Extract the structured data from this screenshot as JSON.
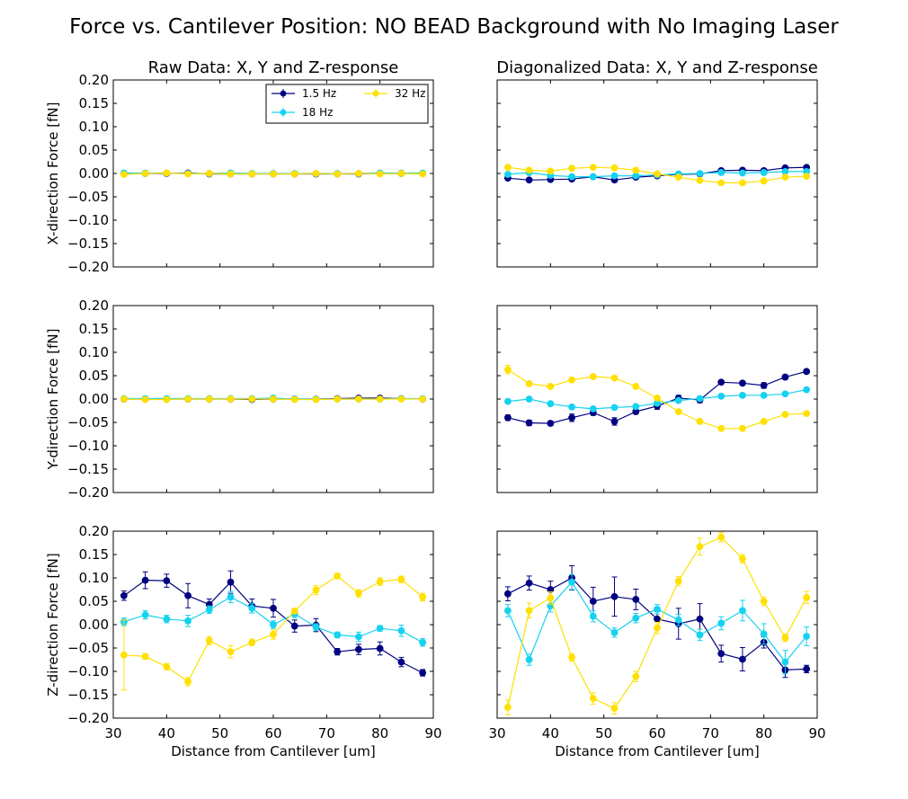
{
  "figure": {
    "suptitle": "Force vs. Cantilever Position: NO BEAD Background with No Imaging Laser"
  },
  "colors": {
    "hz1_5": "#000080",
    "hz18": "#14d2f0",
    "hz32": "#ffe000"
  },
  "chart_data": [
    {
      "type": "line",
      "panel": "raw-x",
      "title": "Raw Data: X, Y and Z-response",
      "xlabel": "",
      "ylabel": "X-direction Force [fN]",
      "xlim": [
        30,
        90
      ],
      "ylim": [
        -0.2,
        0.2
      ],
      "x": [
        32,
        36,
        40,
        44,
        48,
        52,
        56,
        60,
        64,
        68,
        72,
        76,
        80,
        84,
        88
      ],
      "legend": {
        "placement": "top-right",
        "entries": [
          "1.5 Hz",
          "18 Hz",
          "32 Hz"
        ]
      },
      "series": [
        {
          "name": "1.5 Hz",
          "values": [
            0.0,
            0.0,
            0.0,
            0.001,
            -0.001,
            -0.001,
            -0.001,
            -0.001,
            -0.001,
            -0.001,
            -0.001,
            -0.001,
            0.0,
            0.0,
            0.0
          ],
          "errors": [
            0.002,
            0.002,
            0.002,
            0.002,
            0.002,
            0.002,
            0.002,
            0.002,
            0.002,
            0.002,
            0.002,
            0.002,
            0.002,
            0.002,
            0.002
          ]
        },
        {
          "name": "18 Hz",
          "values": [
            0.001,
            0.001,
            0.001,
            0.0,
            0.0,
            0.001,
            0.0,
            0.0,
            0.0,
            0.0,
            0.0,
            0.0,
            0.001,
            0.001,
            0.001
          ],
          "errors": [
            0.002,
            0.002,
            0.002,
            0.002,
            0.002,
            0.002,
            0.002,
            0.002,
            0.002,
            0.002,
            0.002,
            0.002,
            0.002,
            0.002,
            0.002
          ]
        },
        {
          "name": "32 Hz",
          "values": [
            -0.002,
            0.0,
            0.001,
            -0.001,
            0.0,
            -0.001,
            -0.001,
            -0.001,
            -0.001,
            0.0,
            -0.001,
            0.0,
            -0.001,
            0.0,
            -0.001
          ],
          "errors": [
            0.002,
            0.002,
            0.002,
            0.002,
            0.002,
            0.002,
            0.002,
            0.002,
            0.002,
            0.002,
            0.002,
            0.002,
            0.002,
            0.002,
            0.002
          ]
        }
      ]
    },
    {
      "type": "line",
      "panel": "diag-x",
      "title": "Diagonalized Data: X, Y and Z-response",
      "xlabel": "",
      "ylabel": "",
      "xlim": [
        30,
        90
      ],
      "ylim": [
        -0.2,
        0.2
      ],
      "x": [
        32,
        36,
        40,
        44,
        48,
        52,
        56,
        60,
        64,
        68,
        72,
        76,
        80,
        84,
        88
      ],
      "series": [
        {
          "name": "1.5 Hz",
          "values": [
            -0.01,
            -0.014,
            -0.013,
            -0.012,
            -0.007,
            -0.014,
            -0.008,
            -0.005,
            -0.002,
            -0.001,
            0.006,
            0.007,
            0.006,
            0.012,
            0.013
          ],
          "errors": [
            0.003,
            0.003,
            0.003,
            0.004,
            0.003,
            0.004,
            0.003,
            0.003,
            0.003,
            0.003,
            0.003,
            0.003,
            0.004,
            0.003,
            0.003
          ]
        },
        {
          "name": "18 Hz",
          "values": [
            -0.002,
            0.002,
            -0.004,
            -0.007,
            -0.007,
            -0.005,
            -0.005,
            -0.003,
            -0.001,
            0.0,
            0.002,
            0.001,
            0.002,
            0.004,
            0.004
          ],
          "errors": [
            0.002,
            0.002,
            0.002,
            0.002,
            0.002,
            0.002,
            0.002,
            0.002,
            0.002,
            0.002,
            0.002,
            0.002,
            0.002,
            0.002,
            0.002
          ]
        },
        {
          "name": "32 Hz",
          "values": [
            0.013,
            0.007,
            0.005,
            0.011,
            0.013,
            0.012,
            0.007,
            -0.001,
            -0.008,
            -0.015,
            -0.02,
            -0.02,
            -0.016,
            -0.008,
            -0.006
          ],
          "errors": [
            0.002,
            0.002,
            0.002,
            0.002,
            0.002,
            0.002,
            0.002,
            0.002,
            0.002,
            0.002,
            0.002,
            0.002,
            0.002,
            0.002,
            0.002
          ]
        }
      ]
    },
    {
      "type": "line",
      "panel": "raw-y",
      "title": "",
      "xlabel": "",
      "ylabel": "Y-direction Force [fN]",
      "xlim": [
        30,
        90
      ],
      "ylim": [
        -0.2,
        0.2
      ],
      "x": [
        32,
        36,
        40,
        44,
        48,
        52,
        56,
        60,
        64,
        68,
        72,
        76,
        80,
        84,
        88
      ],
      "series": [
        {
          "name": "1.5 Hz",
          "values": [
            0.0,
            0.0,
            0.0,
            0.0,
            0.0,
            0.0,
            -0.001,
            0.0,
            0.0,
            0.0,
            0.001,
            0.002,
            0.002,
            0.001,
            0.0
          ],
          "errors": [
            0.002,
            0.002,
            0.002,
            0.002,
            0.002,
            0.002,
            0.002,
            0.002,
            0.002,
            0.002,
            0.002,
            0.002,
            0.002,
            0.002,
            0.002
          ]
        },
        {
          "name": "18 Hz",
          "values": [
            0.001,
            0.001,
            0.001,
            0.001,
            0.001,
            0.001,
            0.001,
            0.002,
            0.0,
            0.0,
            0.0,
            0.0,
            0.0,
            0.001,
            0.001
          ],
          "errors": [
            0.002,
            0.002,
            0.002,
            0.002,
            0.002,
            0.002,
            0.002,
            0.002,
            0.002,
            0.002,
            0.002,
            0.002,
            0.002,
            0.002,
            0.002
          ]
        },
        {
          "name": "32 Hz",
          "values": [
            0.0,
            -0.001,
            -0.001,
            0.0,
            0.0,
            0.0,
            0.0,
            0.0,
            -0.001,
            -0.001,
            0.0,
            0.0,
            0.0,
            0.0,
            0.0
          ],
          "errors": [
            0.002,
            0.002,
            0.002,
            0.002,
            0.002,
            0.002,
            0.002,
            0.002,
            0.002,
            0.002,
            0.002,
            0.002,
            0.002,
            0.002,
            0.002
          ]
        }
      ]
    },
    {
      "type": "line",
      "panel": "diag-y",
      "title": "",
      "xlabel": "",
      "ylabel": "",
      "xlim": [
        30,
        90
      ],
      "ylim": [
        -0.2,
        0.2
      ],
      "x": [
        32,
        36,
        40,
        44,
        48,
        52,
        56,
        60,
        64,
        68,
        72,
        76,
        80,
        84,
        88
      ],
      "series": [
        {
          "name": "1.5 Hz",
          "values": [
            -0.04,
            -0.051,
            -0.052,
            -0.04,
            -0.029,
            -0.048,
            -0.027,
            -0.015,
            0.002,
            -0.002,
            0.036,
            0.034,
            0.029,
            0.047,
            0.059
          ],
          "errors": [
            0.006,
            0.006,
            0.005,
            0.008,
            0.006,
            0.008,
            0.005,
            0.007,
            0.006,
            0.006,
            0.003,
            0.004,
            0.006,
            0.005,
            0.004
          ]
        },
        {
          "name": "18 Hz",
          "values": [
            -0.005,
            0.0,
            -0.01,
            -0.017,
            -0.021,
            -0.018,
            -0.016,
            -0.009,
            -0.003,
            0.001,
            0.006,
            0.008,
            0.008,
            0.011,
            0.02
          ],
          "errors": [
            0.003,
            0.003,
            0.003,
            0.003,
            0.003,
            0.003,
            0.003,
            0.003,
            0.003,
            0.003,
            0.003,
            0.003,
            0.003,
            0.003,
            0.003
          ]
        },
        {
          "name": "32 Hz",
          "values": [
            0.063,
            0.033,
            0.027,
            0.041,
            0.048,
            0.045,
            0.027,
            0.002,
            -0.027,
            -0.048,
            -0.063,
            -0.063,
            -0.048,
            -0.033,
            -0.031
          ],
          "errors": [
            0.009,
            0.003,
            0.003,
            0.003,
            0.003,
            0.003,
            0.003,
            0.003,
            0.003,
            0.003,
            0.003,
            0.003,
            0.003,
            0.003,
            0.003
          ]
        }
      ]
    },
    {
      "type": "line",
      "panel": "raw-z",
      "title": "",
      "xlabel": "Distance from Cantilever [um]",
      "ylabel": "Z-direction Force [fN]",
      "xlim": [
        30,
        90
      ],
      "ylim": [
        -0.2,
        0.2
      ],
      "x": [
        32,
        36,
        40,
        44,
        48,
        52,
        56,
        60,
        64,
        68,
        72,
        76,
        80,
        84,
        88
      ],
      "series": [
        {
          "name": "1.5 Hz",
          "values": [
            0.062,
            0.095,
            0.094,
            0.062,
            0.043,
            0.091,
            0.04,
            0.035,
            -0.003,
            -0.001,
            -0.058,
            -0.053,
            -0.051,
            -0.08,
            -0.103
          ],
          "errors": [
            0.01,
            0.018,
            0.014,
            0.026,
            0.012,
            0.024,
            0.015,
            0.019,
            0.013,
            0.014,
            0.007,
            0.011,
            0.014,
            0.01,
            0.007
          ]
        },
        {
          "name": "18 Hz",
          "values": [
            0.006,
            0.021,
            0.012,
            0.008,
            0.032,
            0.059,
            0.035,
            0.0,
            0.023,
            -0.005,
            -0.022,
            -0.026,
            -0.008,
            -0.013,
            -0.038
          ],
          "errors": [
            0.008,
            0.009,
            0.008,
            0.012,
            0.008,
            0.012,
            0.01,
            0.008,
            0.008,
            0.007,
            0.006,
            0.01,
            0.006,
            0.012,
            0.008
          ]
        },
        {
          "name": "32 Hz",
          "values": [
            -0.065,
            -0.068,
            -0.09,
            -0.122,
            -0.034,
            -0.058,
            -0.038,
            -0.021,
            0.029,
            0.074,
            0.104,
            0.067,
            0.092,
            0.097,
            0.059
          ],
          "errors": [
            0.075,
            0.006,
            0.007,
            0.009,
            0.009,
            0.013,
            0.007,
            0.01,
            0.005,
            0.01,
            0.006,
            0.008,
            0.008,
            0.007,
            0.008
          ]
        }
      ]
    },
    {
      "type": "line",
      "panel": "diag-z",
      "title": "",
      "xlabel": "Distance from Cantilever [um]",
      "ylabel": "",
      "xlim": [
        30,
        90
      ],
      "ylim": [
        -0.2,
        0.2
      ],
      "x": [
        32,
        36,
        40,
        44,
        48,
        52,
        56,
        60,
        64,
        68,
        72,
        76,
        80,
        84,
        88
      ],
      "series": [
        {
          "name": "1.5 Hz",
          "values": [
            0.066,
            0.089,
            0.075,
            0.1,
            0.05,
            0.06,
            0.054,
            0.012,
            0.002,
            0.012,
            -0.062,
            -0.074,
            -0.038,
            -0.097,
            -0.095
          ],
          "errors": [
            0.015,
            0.015,
            0.018,
            0.026,
            0.03,
            0.042,
            0.022,
            0.016,
            0.033,
            0.033,
            0.018,
            0.025,
            0.012,
            0.016,
            0.008
          ]
        },
        {
          "name": "18 Hz",
          "values": [
            0.03,
            -0.075,
            0.04,
            0.091,
            0.018,
            -0.017,
            0.014,
            0.033,
            0.01,
            -0.022,
            0.003,
            0.03,
            -0.02,
            -0.08,
            -0.025
          ],
          "errors": [
            0.013,
            0.012,
            0.013,
            0.016,
            0.012,
            0.01,
            0.01,
            0.01,
            0.012,
            0.012,
            0.014,
            0.022,
            0.022,
            0.025,
            0.02
          ]
        },
        {
          "name": "32 Hz",
          "values": [
            -0.177,
            0.03,
            0.057,
            -0.07,
            -0.158,
            -0.179,
            -0.111,
            -0.007,
            0.093,
            0.167,
            0.187,
            0.141,
            0.05,
            -0.028,
            0.058
          ],
          "errors": [
            0.016,
            0.016,
            0.013,
            0.008,
            0.012,
            0.012,
            0.011,
            0.012,
            0.01,
            0.018,
            0.01,
            0.009,
            0.009,
            0.008,
            0.013
          ]
        }
      ]
    }
  ]
}
